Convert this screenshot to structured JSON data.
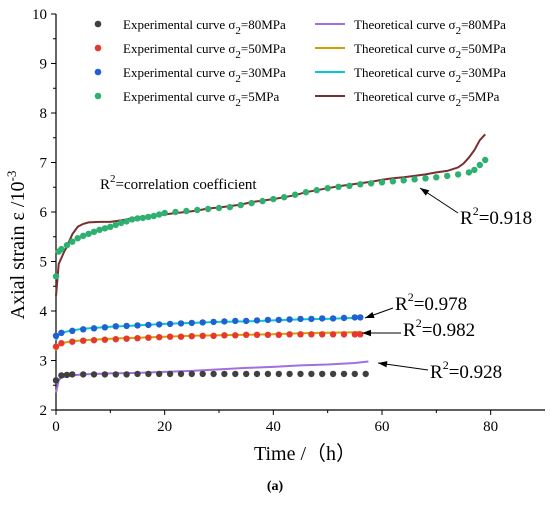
{
  "caption": "(a)",
  "chart_data": {
    "type": "scatter",
    "xlabel": "Time /（h）",
    "ylabel": "Axial strain ε /10",
    "ylabel_sup": "-3",
    "xlim": [
      0,
      90
    ],
    "ylim": [
      2,
      10
    ],
    "xticks": [
      0,
      20,
      40,
      60,
      80
    ],
    "yticks": [
      2,
      3,
      4,
      5,
      6,
      7,
      8,
      9,
      10
    ],
    "grid": false,
    "legend_position": "top",
    "legend": [
      {
        "prefix": "Experimental curve",
        "sigma": "σ",
        "sub": "2",
        "suffix": "=80MPa",
        "kind": "marker",
        "color": "#404040"
      },
      {
        "prefix": "Theoretical curve",
        "sigma": "σ",
        "sub": "2",
        "suffix": "=80MPa",
        "kind": "line",
        "color": "#a070e0"
      },
      {
        "prefix": "Experimental curve",
        "sigma": "σ",
        "sub": "2",
        "suffix": "=50MPa",
        "kind": "marker",
        "color": "#e8382e"
      },
      {
        "prefix": "Theoretical curve",
        "sigma": "σ",
        "sub": "2",
        "suffix": "=50MPa",
        "kind": "line",
        "color": "#d4a000"
      },
      {
        "prefix": "Experimental curve",
        "sigma": "σ",
        "sub": "2",
        "suffix": "=30MPa",
        "kind": "marker",
        "color": "#2060d0"
      },
      {
        "prefix": "Theoretical curve",
        "sigma": "σ",
        "sub": "2",
        "suffix": "=30MPa",
        "kind": "line",
        "color": "#00c8d8"
      },
      {
        "prefix": "Experimental curve",
        "sigma": "σ",
        "sub": "2",
        "suffix": "=5MPa",
        "kind": "marker",
        "color": "#2eb070"
      },
      {
        "prefix": "Theoretical curve",
        "sigma": "σ",
        "sub": "2",
        "suffix": "=5MPa",
        "kind": "line",
        "color": "#7a2e2e"
      }
    ],
    "experimental": [
      {
        "name": "σ2=80MPa",
        "color": "#404040",
        "points": [
          [
            0,
            2.6
          ],
          [
            1,
            2.7
          ],
          [
            2,
            2.71
          ],
          [
            3,
            2.72
          ],
          [
            5,
            2.72
          ],
          [
            7,
            2.72
          ],
          [
            9,
            2.72
          ],
          [
            11,
            2.72
          ],
          [
            13,
            2.72
          ],
          [
            15,
            2.73
          ],
          [
            17,
            2.73
          ],
          [
            19,
            2.73
          ],
          [
            21,
            2.73
          ],
          [
            23,
            2.73
          ],
          [
            25,
            2.73
          ],
          [
            27,
            2.73
          ],
          [
            29,
            2.73
          ],
          [
            31,
            2.73
          ],
          [
            33,
            2.73
          ],
          [
            35,
            2.73
          ],
          [
            37,
            2.73
          ],
          [
            39,
            2.73
          ],
          [
            41,
            2.73
          ],
          [
            43,
            2.73
          ],
          [
            45,
            2.73
          ],
          [
            47,
            2.73
          ],
          [
            49,
            2.73
          ],
          [
            51,
            2.73
          ],
          [
            53,
            2.73
          ],
          [
            55,
            2.73
          ],
          [
            57,
            2.73
          ]
        ]
      },
      {
        "name": "σ2=50MPa",
        "color": "#e8382e",
        "points": [
          [
            0,
            3.28
          ],
          [
            1,
            3.35
          ],
          [
            3,
            3.38
          ],
          [
            5,
            3.4
          ],
          [
            7,
            3.41
          ],
          [
            9,
            3.42
          ],
          [
            11,
            3.43
          ],
          [
            13,
            3.44
          ],
          [
            15,
            3.45
          ],
          [
            17,
            3.46
          ],
          [
            19,
            3.47
          ],
          [
            21,
            3.48
          ],
          [
            23,
            3.48
          ],
          [
            25,
            3.49
          ],
          [
            27,
            3.5
          ],
          [
            29,
            3.5
          ],
          [
            31,
            3.51
          ],
          [
            33,
            3.51
          ],
          [
            35,
            3.52
          ],
          [
            37,
            3.52
          ],
          [
            39,
            3.52
          ],
          [
            41,
            3.52
          ],
          [
            43,
            3.53
          ],
          [
            45,
            3.53
          ],
          [
            47,
            3.53
          ],
          [
            49,
            3.53
          ],
          [
            51,
            3.53
          ],
          [
            53,
            3.53
          ],
          [
            55,
            3.53
          ],
          [
            56,
            3.53
          ]
        ]
      },
      {
        "name": "σ2=30MPa",
        "color": "#2060d0",
        "points": [
          [
            0,
            3.5
          ],
          [
            1,
            3.56
          ],
          [
            3,
            3.6
          ],
          [
            5,
            3.63
          ],
          [
            7,
            3.65
          ],
          [
            9,
            3.67
          ],
          [
            11,
            3.69
          ],
          [
            13,
            3.7
          ],
          [
            15,
            3.71
          ],
          [
            17,
            3.72
          ],
          [
            19,
            3.73
          ],
          [
            21,
            3.74
          ],
          [
            23,
            3.75
          ],
          [
            25,
            3.76
          ],
          [
            27,
            3.77
          ],
          [
            29,
            3.78
          ],
          [
            31,
            3.79
          ],
          [
            33,
            3.8
          ],
          [
            35,
            3.8
          ],
          [
            37,
            3.81
          ],
          [
            39,
            3.82
          ],
          [
            41,
            3.82
          ],
          [
            43,
            3.83
          ],
          [
            45,
            3.84
          ],
          [
            47,
            3.84
          ],
          [
            49,
            3.85
          ],
          [
            51,
            3.85
          ],
          [
            53,
            3.86
          ],
          [
            55,
            3.87
          ],
          [
            56,
            3.87
          ]
        ]
      },
      {
        "name": "σ2=5MPa",
        "color": "#2eb070",
        "points": [
          [
            0,
            4.7
          ],
          [
            0.5,
            5.2
          ],
          [
            1,
            5.25
          ],
          [
            2,
            5.33
          ],
          [
            3,
            5.4
          ],
          [
            4,
            5.47
          ],
          [
            5,
            5.52
          ],
          [
            6,
            5.56
          ],
          [
            7,
            5.6
          ],
          [
            8,
            5.64
          ],
          [
            9,
            5.67
          ],
          [
            10,
            5.7
          ],
          [
            11,
            5.74
          ],
          [
            12,
            5.78
          ],
          [
            13,
            5.81
          ],
          [
            14,
            5.85
          ],
          [
            15,
            5.87
          ],
          [
            16,
            5.88
          ],
          [
            17,
            5.9
          ],
          [
            18,
            5.92
          ],
          [
            19,
            5.95
          ],
          [
            20,
            5.98
          ],
          [
            22,
            6.0
          ],
          [
            24,
            6.02
          ],
          [
            26,
            6.04
          ],
          [
            28,
            6.06
          ],
          [
            30,
            6.08
          ],
          [
            32,
            6.1
          ],
          [
            34,
            6.14
          ],
          [
            36,
            6.18
          ],
          [
            38,
            6.22
          ],
          [
            40,
            6.26
          ],
          [
            42,
            6.3
          ],
          [
            44,
            6.35
          ],
          [
            46,
            6.4
          ],
          [
            48,
            6.44
          ],
          [
            50,
            6.48
          ],
          [
            52,
            6.51
          ],
          [
            54,
            6.53
          ],
          [
            56,
            6.56
          ],
          [
            58,
            6.58
          ],
          [
            60,
            6.6
          ],
          [
            62,
            6.62
          ],
          [
            64,
            6.64
          ],
          [
            66,
            6.66
          ],
          [
            68,
            6.68
          ],
          [
            70,
            6.7
          ],
          [
            72,
            6.73
          ],
          [
            74,
            6.76
          ],
          [
            76,
            6.8
          ],
          [
            77,
            6.85
          ],
          [
            78,
            6.95
          ],
          [
            79,
            7.05
          ]
        ]
      }
    ],
    "theoretical": [
      {
        "name": "σ2=80MPa",
        "color": "#a070e0",
        "points": [
          [
            0,
            2.35
          ],
          [
            0.5,
            2.6
          ],
          [
            1,
            2.66
          ],
          [
            3,
            2.7
          ],
          [
            5,
            2.72
          ],
          [
            10,
            2.74
          ],
          [
            15,
            2.75
          ],
          [
            20,
            2.77
          ],
          [
            25,
            2.79
          ],
          [
            30,
            2.82
          ],
          [
            35,
            2.85
          ],
          [
            40,
            2.87
          ],
          [
            45,
            2.9
          ],
          [
            50,
            2.92
          ],
          [
            55,
            2.95
          ],
          [
            57.5,
            2.98
          ]
        ]
      },
      {
        "name": "σ2=50MPa",
        "color": "#d4a000",
        "points": [
          [
            0,
            3.2
          ],
          [
            0.5,
            3.3
          ],
          [
            1,
            3.35
          ],
          [
            3,
            3.39
          ],
          [
            5,
            3.41
          ],
          [
            10,
            3.44
          ],
          [
            15,
            3.46
          ],
          [
            20,
            3.48
          ],
          [
            25,
            3.5
          ],
          [
            30,
            3.51
          ],
          [
            35,
            3.52
          ],
          [
            40,
            3.53
          ],
          [
            45,
            3.55
          ],
          [
            50,
            3.56
          ],
          [
            55,
            3.57
          ],
          [
            56,
            3.58
          ]
        ]
      },
      {
        "name": "σ2=30MPa",
        "color": "#00c8d8",
        "points": [
          [
            0,
            3.4
          ],
          [
            0.5,
            3.52
          ],
          [
            1,
            3.56
          ],
          [
            3,
            3.61
          ],
          [
            5,
            3.64
          ],
          [
            10,
            3.68
          ],
          [
            15,
            3.71
          ],
          [
            20,
            3.74
          ],
          [
            25,
            3.76
          ],
          [
            30,
            3.78
          ],
          [
            35,
            3.79
          ],
          [
            40,
            3.81
          ],
          [
            45,
            3.83
          ],
          [
            50,
            3.84
          ],
          [
            55,
            3.86
          ],
          [
            56,
            3.87
          ]
        ]
      },
      {
        "name": "σ2=5MPa",
        "color": "#7a2e2e",
        "points": [
          [
            0,
            4.3
          ],
          [
            0.5,
            4.95
          ],
          [
            1.5,
            5.2
          ],
          [
            2,
            5.3
          ],
          [
            3,
            5.55
          ],
          [
            4,
            5.7
          ],
          [
            5,
            5.76
          ],
          [
            6,
            5.79
          ],
          [
            8,
            5.8
          ],
          [
            10,
            5.8
          ],
          [
            12,
            5.83
          ],
          [
            14,
            5.87
          ],
          [
            16,
            5.9
          ],
          [
            18,
            5.93
          ],
          [
            20,
            5.95
          ],
          [
            22,
            5.98
          ],
          [
            24,
            6.0
          ],
          [
            26,
            6.03
          ],
          [
            28,
            6.07
          ],
          [
            30,
            6.09
          ],
          [
            32,
            6.12
          ],
          [
            34,
            6.15
          ],
          [
            36,
            6.2
          ],
          [
            38,
            6.23
          ],
          [
            40,
            6.26
          ],
          [
            42,
            6.3
          ],
          [
            44,
            6.34
          ],
          [
            46,
            6.4
          ],
          [
            48,
            6.44
          ],
          [
            50,
            6.48
          ],
          [
            52,
            6.52
          ],
          [
            54,
            6.55
          ],
          [
            56,
            6.58
          ],
          [
            58,
            6.61
          ],
          [
            60,
            6.65
          ],
          [
            62,
            6.68
          ],
          [
            64,
            6.7
          ],
          [
            66,
            6.73
          ],
          [
            68,
            6.76
          ],
          [
            70,
            6.8
          ],
          [
            72,
            6.83
          ],
          [
            74,
            6.9
          ],
          [
            75,
            6.98
          ],
          [
            76,
            7.1
          ],
          [
            77,
            7.25
          ],
          [
            78,
            7.45
          ],
          [
            79,
            7.57
          ]
        ]
      }
    ],
    "annotations": {
      "corr_label": {
        "text_before": "R",
        "sup": "2",
        "text_after": "=correlation coefficient"
      },
      "r2": [
        {
          "text": "R",
          "sup": "2",
          "value": "=0.918"
        },
        {
          "text": "R",
          "sup": "2",
          "value": "=0.978"
        },
        {
          "text": "R",
          "sup": "2",
          "value": "=0.982"
        },
        {
          "text": "R",
          "sup": "2",
          "value": "=0.928"
        }
      ]
    }
  }
}
